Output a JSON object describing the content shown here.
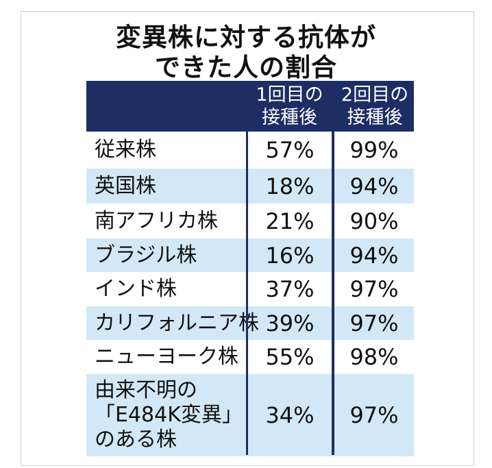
{
  "chart_data": {
    "type": "table",
    "title": [
      "変異株に対する抗体が",
      "できた人の割合"
    ],
    "columns": [
      {
        "lines": [
          "1回目の",
          "接種後"
        ]
      },
      {
        "lines": [
          "2回目の",
          "接種後"
        ]
      }
    ],
    "rows": [
      {
        "name": "従来株",
        "first": "57%",
        "second": "99%"
      },
      {
        "name": "英国株",
        "first": "18%",
        "second": "94%"
      },
      {
        "name": "南アフリカ株",
        "first": "21%",
        "second": "90%"
      },
      {
        "name": "ブラジル株",
        "first": "16%",
        "second": "94%"
      },
      {
        "name": "インド株",
        "first": "37%",
        "second": "97%"
      },
      {
        "name": "カリフォルニア株",
        "first": "39%",
        "second": "97%"
      },
      {
        "name": "ニューヨーク株",
        "first": "55%",
        "second": "98%"
      },
      {
        "name": "由来不明の\n「E484K変異」\nのある株",
        "first": "34%",
        "second": "97%"
      }
    ],
    "colors": {
      "header": "#1e2d63",
      "stripe": "#d3e8f6"
    }
  }
}
